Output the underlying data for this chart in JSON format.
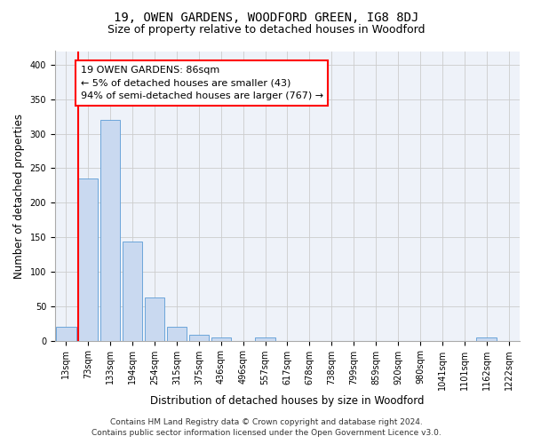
{
  "title1": "19, OWEN GARDENS, WOODFORD GREEN, IG8 8DJ",
  "title2": "Size of property relative to detached houses in Woodford",
  "xlabel": "Distribution of detached houses by size in Woodford",
  "ylabel": "Number of detached properties",
  "bar_values": [
    20,
    235,
    320,
    144,
    63,
    20,
    8,
    5,
    0,
    5,
    0,
    0,
    0,
    0,
    0,
    0,
    0,
    0,
    0,
    5,
    0
  ],
  "x_labels": [
    "13sqm",
    "73sqm",
    "133sqm",
    "194sqm",
    "254sqm",
    "315sqm",
    "375sqm",
    "436sqm",
    "496sqm",
    "557sqm",
    "617sqm",
    "678sqm",
    "738sqm",
    "799sqm",
    "859sqm",
    "920sqm",
    "980sqm",
    "1041sqm",
    "1101sqm",
    "1162sqm",
    "1222sqm"
  ],
  "bar_color": "#c9d9f0",
  "bar_edge_color": "#5b9bd5",
  "vline_color": "red",
  "vline_x_index": 1,
  "annotation_text": "19 OWEN GARDENS: 86sqm\n← 5% of detached houses are smaller (43)\n94% of semi-detached houses are larger (767) →",
  "annotation_box_color": "white",
  "annotation_box_edge": "red",
  "ylim": [
    0,
    420
  ],
  "yticks": [
    0,
    50,
    100,
    150,
    200,
    250,
    300,
    350,
    400
  ],
  "grid_color": "#cccccc",
  "bg_color": "#eef2f9",
  "footer_line1": "Contains HM Land Registry data © Crown copyright and database right 2024.",
  "footer_line2": "Contains public sector information licensed under the Open Government Licence v3.0.",
  "title_fontsize": 10,
  "subtitle_fontsize": 9,
  "axis_label_fontsize": 8.5,
  "tick_fontsize": 7,
  "annotation_fontsize": 8,
  "footer_fontsize": 6.5
}
